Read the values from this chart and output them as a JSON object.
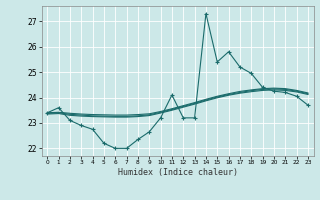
{
  "title": "",
  "xlabel": "Humidex (Indice chaleur)",
  "background_color": "#cce8e8",
  "line_color": "#1a6b6b",
  "grid_color": "#b0d8d8",
  "xlim": [
    -0.5,
    23.5
  ],
  "ylim": [
    21.7,
    27.6
  ],
  "yticks": [
    22,
    23,
    24,
    25,
    26,
    27
  ],
  "xticks": [
    0,
    1,
    2,
    3,
    4,
    5,
    6,
    7,
    8,
    9,
    10,
    11,
    12,
    13,
    14,
    15,
    16,
    17,
    18,
    19,
    20,
    21,
    22,
    23
  ],
  "series_main": {
    "x": [
      0,
      1,
      2,
      3,
      4,
      5,
      6,
      7,
      8,
      9,
      10,
      11,
      12,
      13,
      14,
      15,
      16,
      17,
      18,
      19,
      20,
      21,
      22,
      23
    ],
    "y": [
      23.4,
      23.6,
      23.1,
      22.9,
      22.75,
      22.2,
      22.0,
      22.0,
      22.35,
      22.65,
      23.2,
      24.1,
      23.2,
      23.2,
      27.3,
      25.4,
      25.8,
      25.2,
      24.95,
      24.4,
      24.25,
      24.2,
      24.05,
      23.7
    ]
  },
  "series_smooth1": {
    "x": [
      0,
      1,
      2,
      3,
      4,
      5,
      6,
      7,
      8,
      9,
      10,
      11,
      12,
      13,
      14,
      15,
      16,
      17,
      18,
      19,
      20,
      21,
      22,
      23
    ],
    "y": [
      23.4,
      23.42,
      23.38,
      23.35,
      23.33,
      23.32,
      23.31,
      23.31,
      23.33,
      23.36,
      23.45,
      23.56,
      23.68,
      23.8,
      23.93,
      24.05,
      24.15,
      24.24,
      24.3,
      24.35,
      24.37,
      24.35,
      24.28,
      24.18
    ]
  },
  "series_smooth2": {
    "x": [
      0,
      1,
      2,
      3,
      4,
      5,
      6,
      7,
      8,
      9,
      10,
      11,
      12,
      13,
      14,
      15,
      16,
      17,
      18,
      19,
      20,
      21,
      22,
      23
    ],
    "y": [
      23.38,
      23.4,
      23.34,
      23.31,
      23.28,
      23.27,
      23.26,
      23.26,
      23.28,
      23.32,
      23.42,
      23.53,
      23.65,
      23.77,
      23.9,
      24.02,
      24.12,
      24.2,
      24.27,
      24.32,
      24.34,
      24.32,
      24.25,
      24.15
    ]
  },
  "series_smooth3": {
    "x": [
      0,
      1,
      2,
      3,
      4,
      5,
      6,
      7,
      8,
      9,
      10,
      11,
      12,
      13,
      14,
      15,
      16,
      17,
      18,
      19,
      20,
      21,
      22,
      23
    ],
    "y": [
      23.35,
      23.37,
      23.3,
      23.27,
      23.25,
      23.24,
      23.23,
      23.23,
      23.25,
      23.29,
      23.39,
      23.5,
      23.62,
      23.74,
      23.87,
      23.99,
      24.09,
      24.17,
      24.23,
      24.28,
      24.3,
      24.28,
      24.22,
      24.12
    ]
  }
}
